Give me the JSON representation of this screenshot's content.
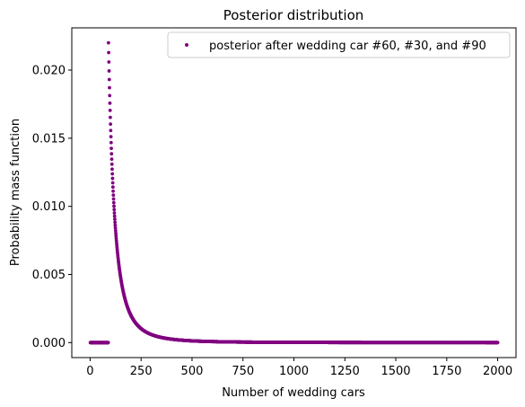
{
  "chart_data": {
    "type": "scatter",
    "title": "Posterior distribution",
    "xlabel": "Number of wedding cars",
    "ylabel": "Probability mass function",
    "xlim": [
      -90,
      2090
    ],
    "ylim": [
      -0.0011,
      0.0231
    ],
    "xticks": [
      0,
      250,
      500,
      750,
      1000,
      1250,
      1500,
      1750,
      2000
    ],
    "yticks": [
      0.0,
      0.005,
      0.01,
      0.015,
      0.02
    ],
    "ytick_labels": [
      "0.000",
      "0.005",
      "0.010",
      "0.015",
      "0.020"
    ],
    "legend": "upper right",
    "grid": false,
    "series": [
      {
        "name": "posterior after wedding car #60, #30, and #90",
        "color": "#800080",
        "model": "pmf proportional to 1/N^3 for N >= 90, zero below",
        "x_range": [
          1,
          2000
        ],
        "x_step": 1,
        "support_start": 90,
        "peak_value": 0.022,
        "sample_points": [
          [
            1,
            0.0
          ],
          [
            89,
            0.0
          ],
          [
            90,
            0.022
          ],
          [
            100,
            0.016
          ],
          [
            120,
            0.0093
          ],
          [
            150,
            0.0048
          ],
          [
            200,
            0.002
          ],
          [
            300,
            0.0006
          ],
          [
            500,
            0.00013
          ],
          [
            1000,
            2e-05
          ],
          [
            2000,
            2e-06
          ]
        ]
      }
    ]
  }
}
